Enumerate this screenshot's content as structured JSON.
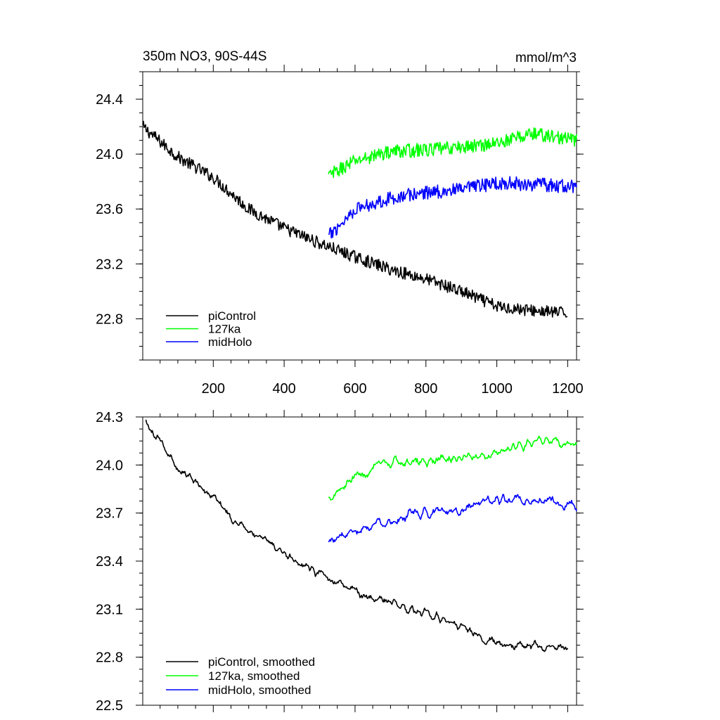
{
  "chart_data": [
    {
      "type": "line",
      "title": "350m NO3, 90S-44S",
      "units": "mmol/m^3",
      "xlim": [
        1,
        1225
      ],
      "ylim": [
        22.5,
        24.6
      ],
      "xticks": [
        200,
        400,
        600,
        800,
        1000,
        1200
      ],
      "xtick_labels": [
        "200",
        "400",
        "600",
        "800",
        "1000",
        "1200"
      ],
      "yticks": [
        22.8,
        23.2,
        23.6,
        24.0,
        24.4
      ],
      "ytick_labels": [
        "22.8",
        "23.2",
        "23.6",
        "24.0",
        "24.4"
      ],
      "legend_position": "bottom-left",
      "series": [
        {
          "name": "piControl",
          "color": "#000000",
          "x": [
            1,
            100,
            200,
            300,
            400,
            500,
            600,
            700,
            800,
            900,
            1000,
            1100,
            1200
          ],
          "y": [
            24.2,
            23.98,
            23.83,
            23.6,
            23.46,
            23.35,
            23.25,
            23.16,
            23.09,
            23.0,
            22.89,
            22.86,
            22.84
          ],
          "noise": 0.045
        },
        {
          "name": "127ka",
          "color": "#00ff00",
          "x": [
            525,
            600,
            700,
            800,
            900,
            1000,
            1100,
            1225
          ],
          "y": [
            23.84,
            23.95,
            24.02,
            24.03,
            24.05,
            24.08,
            24.15,
            24.1
          ],
          "noise": 0.05
        },
        {
          "name": "midHolo",
          "color": "#0000ff",
          "x": [
            525,
            600,
            700,
            800,
            900,
            1000,
            1100,
            1225
          ],
          "y": [
            23.4,
            23.6,
            23.68,
            23.72,
            23.74,
            23.79,
            23.78,
            23.76
          ],
          "noise": 0.05
        }
      ]
    },
    {
      "type": "line",
      "xlim": [
        1,
        1225
      ],
      "ylim": [
        22.5,
        24.3
      ],
      "yticks": [
        22.5,
        22.8,
        23.1,
        23.4,
        23.7,
        24.0,
        24.3
      ],
      "ytick_labels": [
        "22.5",
        "22.8",
        "23.1",
        "23.4",
        "23.7",
        "24.0",
        "24.3"
      ],
      "legend_position": "bottom-left",
      "series": [
        {
          "name": "piControl, smoothed",
          "color": "#000000",
          "x": [
            10,
            100,
            200,
            300,
            400,
            500,
            600,
            700,
            800,
            900,
            1000,
            1100,
            1200
          ],
          "y": [
            24.25,
            23.98,
            23.8,
            23.58,
            23.45,
            23.33,
            23.2,
            23.15,
            23.06,
            23.0,
            22.89,
            22.87,
            22.85
          ],
          "noise": 0.035
        },
        {
          "name": "127ka, smoothed",
          "color": "#00ff00",
          "x": [
            525,
            600,
            700,
            800,
            900,
            1000,
            1100,
            1225
          ],
          "y": [
            23.8,
            23.93,
            24.01,
            24.02,
            24.04,
            24.08,
            24.15,
            24.12
          ],
          "noise": 0.04
        },
        {
          "name": "midHolo, smoothed",
          "color": "#0000ff",
          "x": [
            525,
            600,
            700,
            800,
            900,
            1000,
            1100,
            1225
          ],
          "y": [
            23.52,
            23.6,
            23.66,
            23.7,
            23.73,
            23.78,
            23.77,
            23.76
          ],
          "noise": 0.04
        }
      ]
    }
  ]
}
